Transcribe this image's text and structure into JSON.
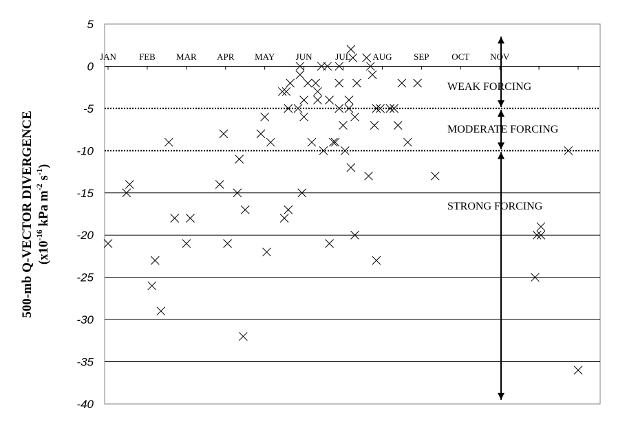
{
  "chart_data": {
    "type": "scatter",
    "ylabel": "500-mb Q-VECTOR DIVERGENCE",
    "ylabel_units": {
      "prefix": "(x10",
      "exp1": "-16",
      "mid": " kPa m",
      "exp2": "-2",
      "sp": " s",
      "exp3": "-1",
      "suffix": ")"
    },
    "ylim": [
      -40,
      5
    ],
    "yticks": [
      5,
      0,
      -5,
      -10,
      -15,
      -20,
      -25,
      -30,
      -35,
      -40
    ],
    "y_tick_labels": [
      "5",
      "0",
      "-5",
      "-10",
      "-15",
      "-20",
      "-25",
      "-30",
      "-35",
      "-40"
    ],
    "xlim": [
      0,
      12
    ],
    "months": [
      "JAN",
      "FEB",
      "MAR",
      "APR",
      "MAY",
      "JUN",
      "JUL",
      "AUG",
      "SEP",
      "OCT",
      "NOV"
    ],
    "gridlines": "horizontal",
    "thresholds": [
      -5,
      -10
    ],
    "regions": [
      {
        "label": "WEAK FORCING",
        "from": 3.5,
        "to": -5
      },
      {
        "label": "MODERATE FORCING",
        "from": -5,
        "to": -10
      },
      {
        "label": "STRONG FORCING",
        "from": -10,
        "to": -39.5
      }
    ],
    "marker": "x",
    "points": [
      [
        0.0,
        -21
      ],
      [
        0.47,
        -15
      ],
      [
        0.55,
        -14
      ],
      [
        1.12,
        -26
      ],
      [
        1.2,
        -23
      ],
      [
        1.35,
        -29
      ],
      [
        1.55,
        -9
      ],
      [
        1.7,
        -18
      ],
      [
        2.0,
        -21
      ],
      [
        2.1,
        -18
      ],
      [
        2.85,
        -14
      ],
      [
        2.95,
        -8
      ],
      [
        3.05,
        -21
      ],
      [
        3.3,
        -15
      ],
      [
        3.35,
        -11
      ],
      [
        3.5,
        -17
      ],
      [
        3.45,
        -32
      ],
      [
        3.9,
        -8
      ],
      [
        4.0,
        -6
      ],
      [
        4.05,
        -22
      ],
      [
        4.15,
        -9
      ],
      [
        4.45,
        -3
      ],
      [
        4.55,
        -3
      ],
      [
        4.5,
        -18
      ],
      [
        4.6,
        -17
      ],
      [
        4.65,
        -2
      ],
      [
        4.6,
        -5
      ],
      [
        4.85,
        -5
      ],
      [
        4.9,
        0
      ],
      [
        4.9,
        -1
      ],
      [
        5.0,
        -6
      ],
      [
        5.0,
        -4
      ],
      [
        4.95,
        -15
      ],
      [
        5.1,
        -2
      ],
      [
        5.2,
        -9
      ],
      [
        5.3,
        -2
      ],
      [
        5.35,
        -3
      ],
      [
        5.35,
        -4
      ],
      [
        5.45,
        0
      ],
      [
        5.5,
        -10
      ],
      [
        5.6,
        0
      ],
      [
        5.65,
        -4
      ],
      [
        5.65,
        -21
      ],
      [
        5.75,
        -9
      ],
      [
        5.8,
        -9
      ],
      [
        5.9,
        0
      ],
      [
        5.9,
        -2
      ],
      [
        5.9,
        -5
      ],
      [
        6.0,
        -7
      ],
      [
        6.05,
        -10
      ],
      [
        6.15,
        -4
      ],
      [
        6.15,
        -5
      ],
      [
        6.2,
        -12
      ],
      [
        6.2,
        2
      ],
      [
        6.25,
        1
      ],
      [
        6.3,
        -20
      ],
      [
        6.3,
        -6
      ],
      [
        6.35,
        -2
      ],
      [
        6.6,
        1
      ],
      [
        6.65,
        -13
      ],
      [
        6.7,
        0
      ],
      [
        6.75,
        -1
      ],
      [
        6.8,
        -7
      ],
      [
        6.85,
        -5
      ],
      [
        6.85,
        -23
      ],
      [
        6.95,
        -5
      ],
      [
        7.2,
        -5
      ],
      [
        7.3,
        -5
      ],
      [
        7.4,
        -7
      ],
      [
        7.5,
        -2
      ],
      [
        7.65,
        -9
      ],
      [
        7.9,
        -2
      ],
      [
        8.35,
        -13
      ],
      [
        10.9,
        -25
      ],
      [
        10.95,
        -20
      ],
      [
        11.05,
        -19
      ],
      [
        11.05,
        -20
      ],
      [
        11.75,
        -10
      ],
      [
        12.0,
        -36
      ]
    ]
  }
}
